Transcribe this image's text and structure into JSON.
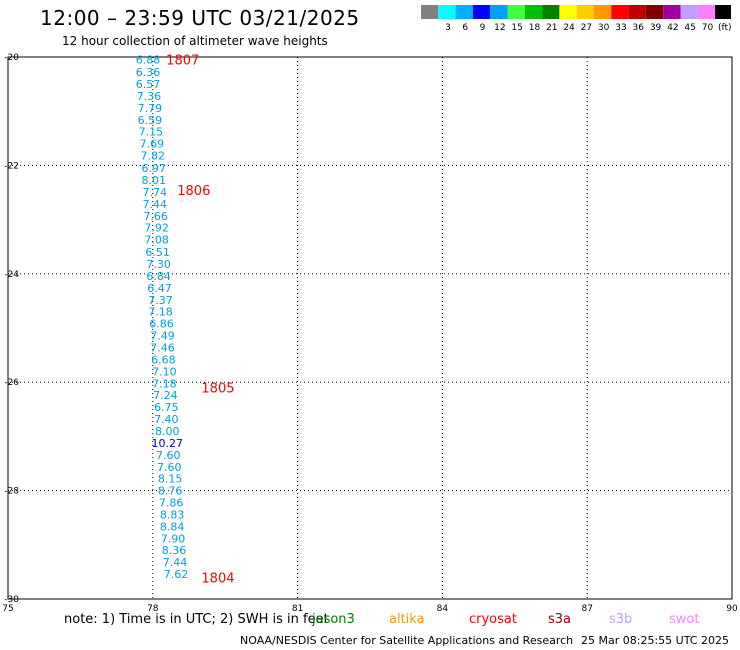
{
  "header": {
    "title": "12:00 – 23:59 UTC 03/21/2025",
    "subtitle": "12 hour collection of altimeter wave heights"
  },
  "colorbar": {
    "bins": [
      {
        "color": "#808080",
        "label": ""
      },
      {
        "color": "#00ffff",
        "label": "3"
      },
      {
        "color": "#00b0ff",
        "label": "6"
      },
      {
        "color": "#0000ff",
        "label": "9"
      },
      {
        "color": "#00a0ff",
        "label": "12"
      },
      {
        "color": "#40ff40",
        "label": "15"
      },
      {
        "color": "#00c000",
        "label": "18"
      },
      {
        "color": "#008000",
        "label": "21"
      },
      {
        "color": "#ffff00",
        "label": "24"
      },
      {
        "color": "#ffcc00",
        "label": "27"
      },
      {
        "color": "#ff9900",
        "label": "30"
      },
      {
        "color": "#ff0000",
        "label": "33"
      },
      {
        "color": "#c00000",
        "label": "36"
      },
      {
        "color": "#800000",
        "label": "39"
      },
      {
        "color": "#a000a0",
        "label": "42"
      },
      {
        "color": "#c0a0ff",
        "label": "45"
      },
      {
        "color": "#ff80ff",
        "label": "70"
      },
      {
        "color": "#000000",
        "label": "(ft)"
      }
    ]
  },
  "chart_data": {
    "type": "scatter",
    "title": "12:00 – 23:59 UTC 03/21/2025",
    "subtitle": "12 hour collection of altimeter wave heights",
    "xlim": [
      75,
      90
    ],
    "ylim": [
      -30,
      -20
    ],
    "x_ticks": [
      "75",
      "78",
      "81",
      "84",
      "87",
      "90"
    ],
    "y_ticks": [
      "-20",
      "-22",
      "-24",
      "-26",
      "-28",
      "-30"
    ],
    "x_tick_values": [
      75,
      78,
      81,
      84,
      87,
      90
    ],
    "y_tick_values": [
      -20,
      -22,
      -24,
      -26,
      -28,
      -30
    ],
    "grid": true,
    "series": [
      {
        "name": "jason3",
        "color": "#00a0e0",
        "points": [
          {
            "x": 77.9,
            "y": -20.05,
            "label": "6.88"
          },
          {
            "x": 77.9,
            "y": -20.28,
            "label": "6.36"
          },
          {
            "x": 77.9,
            "y": -20.5,
            "label": "6.57"
          },
          {
            "x": 77.92,
            "y": -20.72,
            "label": "7.36"
          },
          {
            "x": 77.94,
            "y": -20.94,
            "label": "7.79"
          },
          {
            "x": 77.94,
            "y": -21.16,
            "label": "6.59"
          },
          {
            "x": 77.96,
            "y": -21.37,
            "label": "7.15"
          },
          {
            "x": 77.98,
            "y": -21.6,
            "label": "7.69"
          },
          {
            "x": 78.0,
            "y": -21.82,
            "label": "7.82"
          },
          {
            "x": 78.02,
            "y": -22.05,
            "label": "6.97"
          },
          {
            "x": 78.02,
            "y": -22.27,
            "label": "8.01"
          },
          {
            "x": 78.04,
            "y": -22.49,
            "label": "7.74"
          },
          {
            "x": 78.04,
            "y": -22.71,
            "label": "7.44"
          },
          {
            "x": 78.06,
            "y": -22.93,
            "label": "7.66"
          },
          {
            "x": 78.08,
            "y": -23.15,
            "label": "7.92"
          },
          {
            "x": 78.08,
            "y": -23.37,
            "label": "7.08"
          },
          {
            "x": 78.1,
            "y": -23.6,
            "label": "6.51"
          },
          {
            "x": 78.12,
            "y": -23.82,
            "label": "7.30"
          },
          {
            "x": 78.12,
            "y": -24.04,
            "label": "6.84"
          },
          {
            "x": 78.14,
            "y": -24.26,
            "label": "6.47"
          },
          {
            "x": 78.16,
            "y": -24.48,
            "label": "7.37"
          },
          {
            "x": 78.16,
            "y": -24.7,
            "label": "7.18"
          },
          {
            "x": 78.18,
            "y": -24.92,
            "label": "6.86"
          },
          {
            "x": 78.2,
            "y": -25.14,
            "label": "7.49"
          },
          {
            "x": 78.2,
            "y": -25.36,
            "label": "7.46"
          },
          {
            "x": 78.22,
            "y": -25.58,
            "label": "6.68"
          },
          {
            "x": 78.24,
            "y": -25.8,
            "label": "7.10"
          },
          {
            "x": 78.24,
            "y": -26.02,
            "label": "7.18"
          },
          {
            "x": 78.26,
            "y": -26.24,
            "label": "7.24"
          },
          {
            "x": 78.28,
            "y": -26.46,
            "label": "6.75"
          },
          {
            "x": 78.28,
            "y": -26.68,
            "label": "7.40"
          },
          {
            "x": 78.3,
            "y": -26.9,
            "label": "8.00"
          },
          {
            "x": 78.3,
            "y": -27.12,
            "label": "10.27",
            "color": "#0000c0"
          },
          {
            "x": 78.32,
            "y": -27.34,
            "label": "7.60"
          },
          {
            "x": 78.34,
            "y": -27.56,
            "label": "7.60"
          },
          {
            "x": 78.36,
            "y": -27.78,
            "label": "8.15"
          },
          {
            "x": 78.36,
            "y": -28.0,
            "label": "8.76"
          },
          {
            "x": 78.38,
            "y": -28.22,
            "label": "7.86"
          },
          {
            "x": 78.4,
            "y": -28.44,
            "label": "8.83"
          },
          {
            "x": 78.4,
            "y": -28.66,
            "label": "8.84"
          },
          {
            "x": 78.42,
            "y": -28.88,
            "label": "7.90"
          },
          {
            "x": 78.44,
            "y": -29.1,
            "label": "8.36"
          },
          {
            "x": 78.46,
            "y": -29.32,
            "label": "7.44"
          },
          {
            "x": 78.48,
            "y": -29.54,
            "label": "7.62"
          }
        ]
      }
    ],
    "annotations": [
      {
        "x": 78.62,
        "y": -20.05,
        "text": "1807"
      },
      {
        "x": 78.85,
        "y": -22.45,
        "text": "1806"
      },
      {
        "x": 79.35,
        "y": -26.1,
        "text": "1805"
      },
      {
        "x": 79.35,
        "y": -29.6,
        "text": "1804"
      }
    ]
  },
  "note": {
    "text": "note: 1) Time is in UTC; 2) SWH is in feet"
  },
  "missions": [
    {
      "name": "jason3",
      "color": "#008000"
    },
    {
      "name": "altika",
      "color": "#ff9900"
    },
    {
      "name": "cryosat",
      "color": "#ff0000"
    },
    {
      "name": "s3a",
      "color": "#a00000"
    },
    {
      "name": "s3b",
      "color": "#c0a0ff"
    },
    {
      "name": "swot",
      "color": "#ff80ff"
    }
  ],
  "footer": {
    "credit": "NOAA/NESDIS Center for Satellite Applications and Research",
    "timestamp": "25 Mar 08:25:55 UTC 2025"
  }
}
